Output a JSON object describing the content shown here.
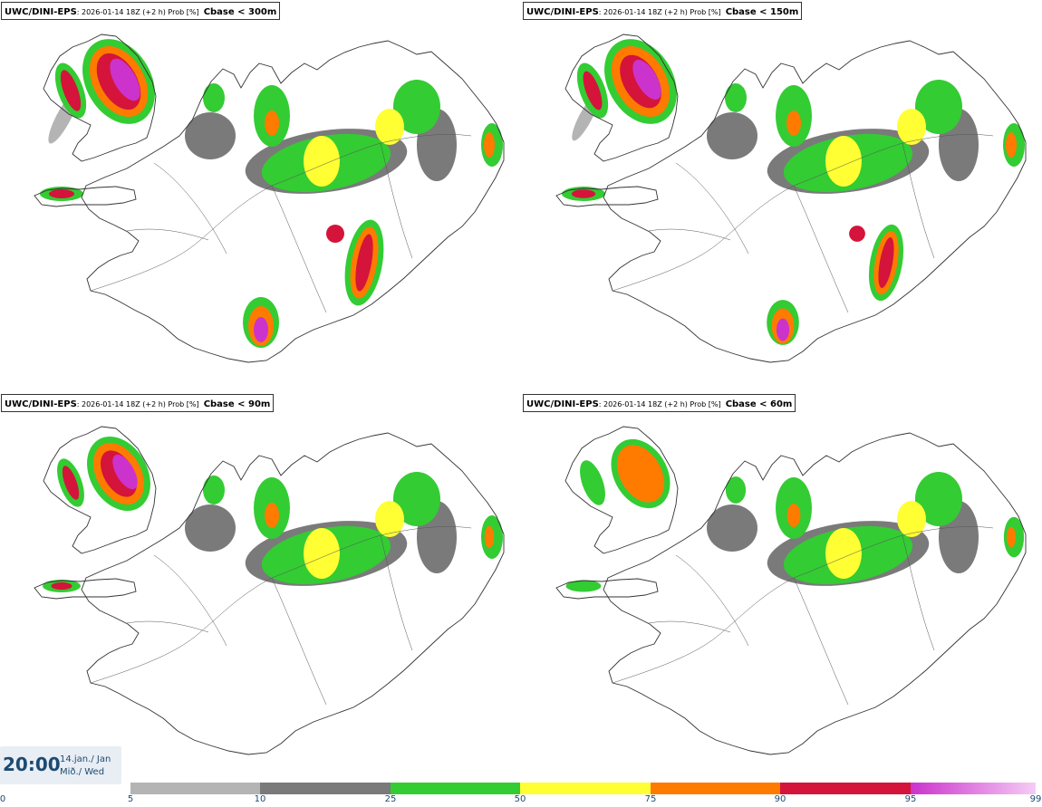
{
  "panels": [
    {
      "source": "UWC/DINI-EPS",
      "info": ": 2026-01-14 18Z (+2 h) Prob [%]",
      "variable": "Cbase < 300m",
      "extent": 1.0
    },
    {
      "source": "UWC/DINI-EPS",
      "info": ": 2026-01-14 18Z (+2 h) Prob [%]",
      "variable": "Cbase < 150m",
      "extent": 0.8
    },
    {
      "source": "UWC/DINI-EPS",
      "info": ": 2026-01-14 18Z (+2 h) Prob [%]",
      "variable": "Cbase < 90m",
      "extent": 0.7
    },
    {
      "source": "UWC/DINI-EPS",
      "info": ": 2026-01-14 18Z (+2 h) Prob [%]",
      "variable": "Cbase < 60m",
      "extent": 0.65
    }
  ],
  "valid_time": {
    "time": "20:00",
    "date_line1": "14.jan./ Jan",
    "date_line2": "Mið./ Wed"
  },
  "legend": {
    "unit": "Prob [%]",
    "ticks": [
      "0",
      "5",
      "10",
      "25",
      "50",
      "75",
      "90",
      "95",
      "99"
    ],
    "bins": [
      {
        "from": 5,
        "to": 10,
        "color": "#b4b4b4"
      },
      {
        "from": 10,
        "to": 25,
        "color": "#7a7a7a"
      },
      {
        "from": 25,
        "to": 50,
        "color": "#33cc33"
      },
      {
        "from": 50,
        "to": 75,
        "color": "#ffff33"
      },
      {
        "from": 75,
        "to": 90,
        "color": "#ff7b00"
      },
      {
        "from": 90,
        "to": 95,
        "color": "#d4143a"
      },
      {
        "from": 95,
        "to": 99,
        "color": "#cc33cc"
      }
    ],
    "top_color_end": "#f5ccf5"
  },
  "colors": {
    "coastline": "#333333",
    "roads": "#555555",
    "prob_5_10": "#b4b4b4",
    "prob_10_25": "#7a7a7a",
    "prob_25_50": "#33cc33",
    "prob_50_75": "#ffff33",
    "prob_75_90": "#ff7b00",
    "prob_90_95": "#d4143a",
    "prob_95_99": "#cc33cc"
  }
}
